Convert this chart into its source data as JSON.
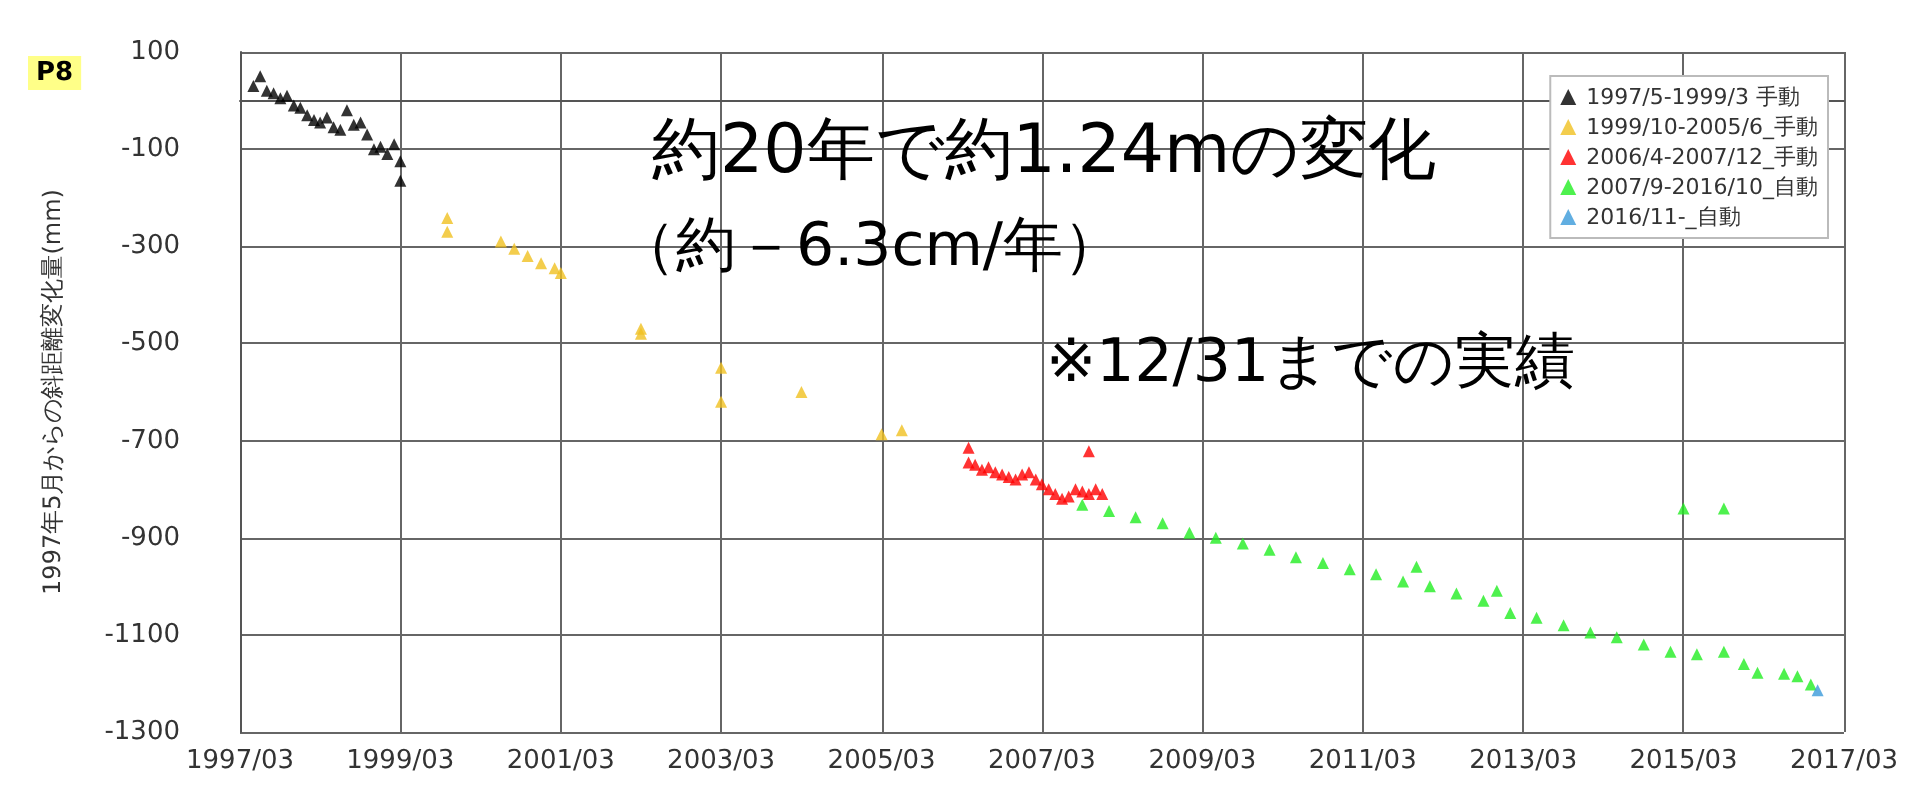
{
  "chart_data": {
    "type": "scatter",
    "ylabel": "1997年5月からの斜距離変化量(mm)",
    "annotations": [
      "P8",
      "約20年で約1.24mの変化",
      "（約－6.3cm/年）",
      "※12/31までの実績"
    ],
    "xlim": [
      "1997-03",
      "2017-03"
    ],
    "xticks": [
      {
        "value": "1997-03",
        "label": "1997/03"
      },
      {
        "value": "1999-03",
        "label": "1999/03"
      },
      {
        "value": "2001-03",
        "label": "2001/03"
      },
      {
        "value": "2003-03",
        "label": "2003/03"
      },
      {
        "value": "2005-03",
        "label": "2005/03"
      },
      {
        "value": "2007-03",
        "label": "2007/03"
      },
      {
        "value": "2009-03",
        "label": "2009/03"
      },
      {
        "value": "2011-03",
        "label": "2011/03"
      },
      {
        "value": "2013-03",
        "label": "2013/03"
      },
      {
        "value": "2015-03",
        "label": "2015/03"
      },
      {
        "value": "2017-03",
        "label": "2017/03"
      }
    ],
    "ylim": [
      -1300,
      100
    ],
    "yticks": [
      -1300,
      -1100,
      -900,
      -700,
      -500,
      -300,
      -100,
      100
    ],
    "grid": true,
    "legend": "top right",
    "marker": "triangle",
    "series": [
      {
        "name": "1997/5-1999/3 手動",
        "color": "#000000",
        "x": [
          "1997-05",
          "1997-06",
          "1997-07",
          "1997-08",
          "1997-09",
          "1997-10",
          "1997-11",
          "1997-12",
          "1998-01",
          "1998-02",
          "1998-03",
          "1998-04",
          "1998-05",
          "1998-06",
          "1998-07",
          "1998-08",
          "1998-09",
          "1998-10",
          "1998-11",
          "1998-12",
          "1999-01",
          "1999-02",
          "1999-03",
          "1999-03"
        ],
        "values": [
          30,
          50,
          20,
          15,
          5,
          10,
          -10,
          -15,
          -30,
          -40,
          -45,
          -35,
          -55,
          -60,
          -20,
          -50,
          -45,
          -70,
          -100,
          -95,
          -110,
          -90,
          -125,
          -165
        ]
      },
      {
        "name": "1999/10-2005/6_手動",
        "color": "#f0c020",
        "x": [
          "1999-10",
          "1999-10",
          "2000-06",
          "2000-08",
          "2000-10",
          "2000-12",
          "2001-02",
          "2001-03",
          "2002-03",
          "2002-03",
          "2003-03",
          "2003-03",
          "2004-03",
          "2005-03",
          "2005-06"
        ],
        "values": [
          -242,
          -270,
          -290,
          -305,
          -320,
          -335,
          -345,
          -355,
          -470,
          -480,
          -550,
          -620,
          -600,
          -687,
          -679
        ]
      },
      {
        "name": "2006/4-2007/12_手動",
        "color": "#ff0000",
        "x": [
          "2006-04",
          "2006-04",
          "2006-05",
          "2006-06",
          "2006-07",
          "2006-08",
          "2006-09",
          "2006-10",
          "2006-11",
          "2006-12",
          "2007-01",
          "2007-02",
          "2007-03",
          "2007-04",
          "2007-05",
          "2007-06",
          "2007-07",
          "2007-08",
          "2007-09",
          "2007-10",
          "2007-10",
          "2007-11",
          "2007-12"
        ],
        "values": [
          -715,
          -745,
          -750,
          -760,
          -755,
          -765,
          -770,
          -775,
          -780,
          -770,
          -765,
          -780,
          -790,
          -800,
          -810,
          -820,
          -815,
          -800,
          -805,
          -722,
          -810,
          -800,
          -810
        ]
      },
      {
        "name": "2007/9-2016/10_自動",
        "color": "#22ee22",
        "x": [
          "2007-09",
          "2008-01",
          "2008-05",
          "2008-09",
          "2009-01",
          "2009-05",
          "2009-09",
          "2010-01",
          "2010-05",
          "2010-09",
          "2011-01",
          "2011-05",
          "2011-09",
          "2011-11",
          "2012-01",
          "2012-05",
          "2012-09",
          "2012-11",
          "2013-01",
          "2013-05",
          "2013-09",
          "2014-01",
          "2014-05",
          "2014-09",
          "2015-01",
          "2015-03",
          "2015-05",
          "2015-09",
          "2015-09",
          "2015-12",
          "2016-02",
          "2016-06",
          "2016-08",
          "2016-10"
        ],
        "values": [
          -832,
          -845,
          -858,
          -870,
          -890,
          -900,
          -912,
          -925,
          -940,
          -952,
          -965,
          -975,
          -990,
          -960,
          -1000,
          -1015,
          -1030,
          -1009,
          -1055,
          -1065,
          -1080,
          -1095,
          -1105,
          -1120,
          -1135,
          -840,
          -1140,
          -1135,
          -840,
          -1160,
          -1178,
          -1180,
          -1185,
          -1202
        ]
      },
      {
        "name": "2016/11-_自動",
        "color": "#3a9ad9",
        "x": [
          "2016-11"
        ],
        "values": [
          -1214
        ]
      }
    ]
  }
}
